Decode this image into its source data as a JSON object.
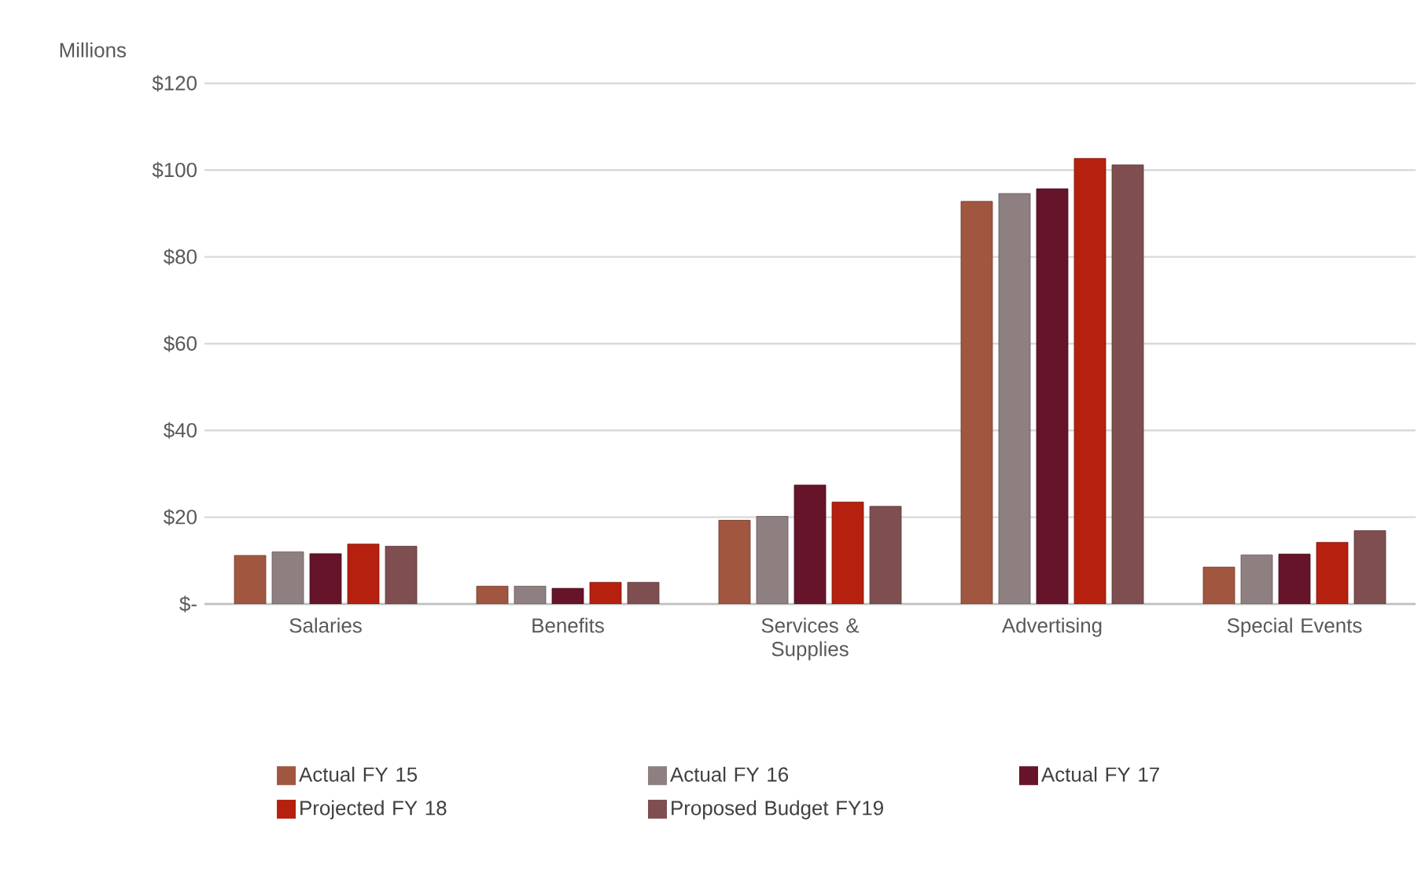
{
  "chart_data": {
    "type": "bar",
    "ylabel": "Millions",
    "categories": [
      "Salaries",
      "Benefits",
      "Services & Supplies",
      "Advertising",
      "Special Events"
    ],
    "series": [
      {
        "name": "Actual FY 15",
        "color": "#a0563f",
        "values": [
          11.2,
          4.1,
          19.3,
          92.8,
          8.5
        ]
      },
      {
        "name": "Actual FY 16",
        "color": "#8e7f80",
        "values": [
          12.0,
          4.1,
          20.2,
          94.6,
          11.3
        ]
      },
      {
        "name": "Actual FY 17",
        "color": "#65142a",
        "values": [
          11.6,
          3.6,
          27.4,
          95.7,
          11.5
        ]
      },
      {
        "name": "Projected FY 18",
        "color": "#b5200f",
        "values": [
          13.8,
          5.0,
          23.5,
          102.7,
          14.2
        ]
      },
      {
        "name": "Proposed Budget FY19",
        "color": "#7f4e50",
        "values": [
          13.3,
          5.0,
          22.5,
          101.2,
          16.9
        ]
      }
    ],
    "ylim": [
      0,
      120
    ],
    "yticks": [
      {
        "value": 0,
        "label": "$-"
      },
      {
        "value": 20,
        "label": "$20"
      },
      {
        "value": 40,
        "label": "$40"
      },
      {
        "value": 60,
        "label": "$60"
      },
      {
        "value": 80,
        "label": "$80"
      },
      {
        "value": 100,
        "label": "$100"
      },
      {
        "value": 120,
        "label": "$120"
      }
    ],
    "grid": "y",
    "legend": "bottom"
  }
}
